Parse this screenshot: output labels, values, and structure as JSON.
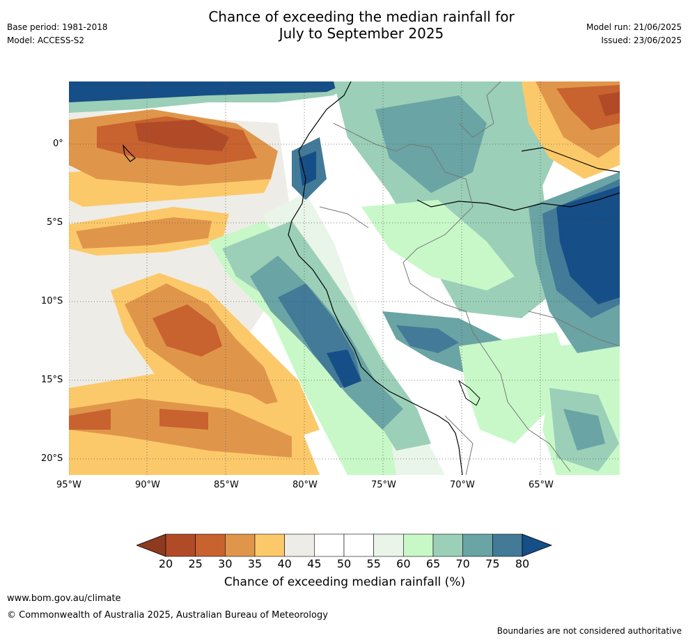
{
  "header": {
    "base_period": "Base period: 1981-2018",
    "model": "Model: ACCESS-S2",
    "title_line1": "Chance of exceeding the median rainfall for",
    "title_line2": "July to September 2025",
    "model_run": "Model run: 21/06/2025",
    "issued": "Issued: 23/06/2025"
  },
  "map": {
    "lat_labels": [
      "0°",
      "5°S",
      "10°S",
      "15°S",
      "20°S"
    ],
    "lon_labels": [
      "95°W",
      "90°W",
      "85°W",
      "80°W",
      "75°W",
      "70°W",
      "65°W"
    ],
    "colors": {
      "ocean_low": "#e2f3e0",
      "dry_strong": "#b14b27",
      "dry": "#c8622f",
      "dry_mild": "#e0964a",
      "dry_light": "#fcc96a",
      "neutral": "#eeece6",
      "wet_light": "#c8f8c8",
      "wet": "#9bcfb8",
      "wet_mid": "#6aa4a4",
      "wet_strong": "#427a98",
      "wet_max": "#164e87"
    }
  },
  "colorbar": {
    "ticks": [
      "20",
      "25",
      "30",
      "35",
      "40",
      "45",
      "50",
      "55",
      "60",
      "65",
      "70",
      "75",
      "80"
    ],
    "label": "Chance of exceeding median rainfall (%)",
    "min_color": "#8d3a1e",
    "max_color": "#164e87",
    "colors": [
      "#b14b27",
      "#c8622f",
      "#e0964a",
      "#fcc96a",
      "#eeece6",
      "#ffffff",
      "#ffffff",
      "#e9f5e9",
      "#c8f8c8",
      "#9bcfb8",
      "#6aa4a4",
      "#427a98"
    ]
  },
  "footer": {
    "url": "www.bom.gov.au/climate",
    "copyright": "© Commonwealth of Australia 2025, Australian Bureau of Meteorology",
    "disclaimer": "Boundaries are not considered authoritative"
  }
}
